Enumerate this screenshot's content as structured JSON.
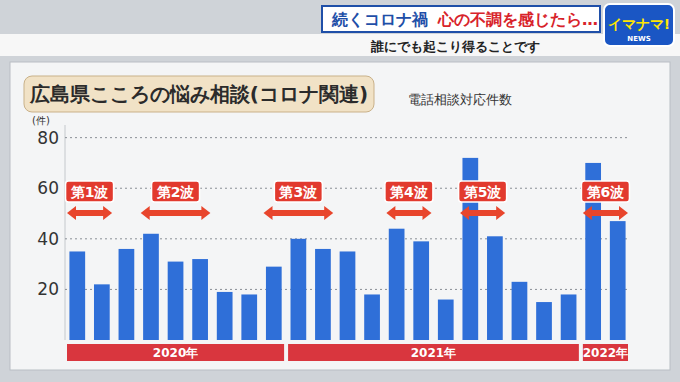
{
  "chart_data": {
    "type": "bar",
    "title": "広島県こころの悩み相談(コロナ関連)",
    "subtitle": "電話相談対応件数",
    "y_label": "(件)",
    "header": {
      "banner_1": "続くコロナ禍",
      "banner_2": "心の不調を感じたら…",
      "subtitle": "誰にでも起こり得ることです",
      "logo": "イマナマ!",
      "logo_sub": "NEWS"
    },
    "categories": [
      null,
      null,
      null,
      null,
      null,
      null,
      null,
      null,
      null,
      null,
      null,
      null,
      null,
      null,
      null,
      null,
      null,
      null,
      null,
      null,
      null,
      null,
      null
    ],
    "values": [
      35,
      22,
      36,
      42,
      31,
      32,
      19,
      18,
      29,
      40,
      36,
      35,
      18,
      44,
      39,
      16,
      72,
      41,
      23,
      15,
      18,
      70,
      47
    ],
    "color": "#2f6fd8",
    "ylim": [
      0,
      85
    ],
    "yticks": [
      20,
      40,
      60,
      80
    ],
    "grid": true,
    "tick_labels": "y",
    "data_labels": false,
    "year_groups": [
      {
        "label": "2020年",
        "start": 0,
        "end": 8
      },
      {
        "label": "2021年",
        "start": 9,
        "end": 20
      },
      {
        "label": "2022年",
        "start": 21,
        "end": 22
      }
    ],
    "annotations": [
      {
        "label": "第1波",
        "start": 0,
        "end": 1
      },
      {
        "label": "第2波",
        "start": 3,
        "end": 5
      },
      {
        "label": "第3波",
        "start": 8,
        "end": 10
      },
      {
        "label": "第4波",
        "start": 13,
        "end": 14
      },
      {
        "label": "第5波",
        "start": 16,
        "end": 17
      },
      {
        "label": "第6波",
        "start": 21,
        "end": 22
      }
    ]
  }
}
